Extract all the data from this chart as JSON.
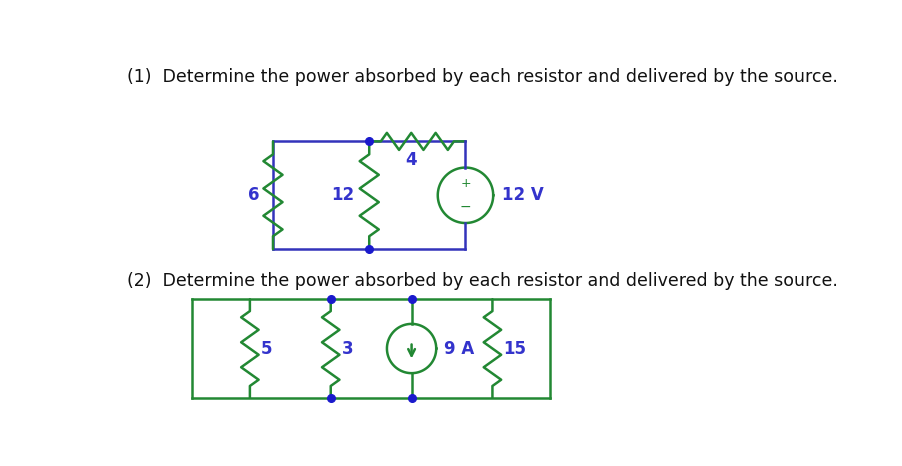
{
  "bg_color": "#ffffff",
  "wire_color_1": "#3333bb",
  "resistor_color_1": "#228833",
  "source_color_1": "#228833",
  "wire_color_2": "#228833",
  "resistor_color_2": "#228833",
  "source_color_2": "#228833",
  "node_color": "#1a1acc",
  "label_color": "#3333cc",
  "text_color": "#111111",
  "title1": "(1)  Determine the power absorbed by each resistor and delivered by the source.",
  "title2": "(2)  Determine the power absorbed by each resistor and delivered by the source.",
  "title_fontsize": 12.5,
  "label_fontsize": 12
}
